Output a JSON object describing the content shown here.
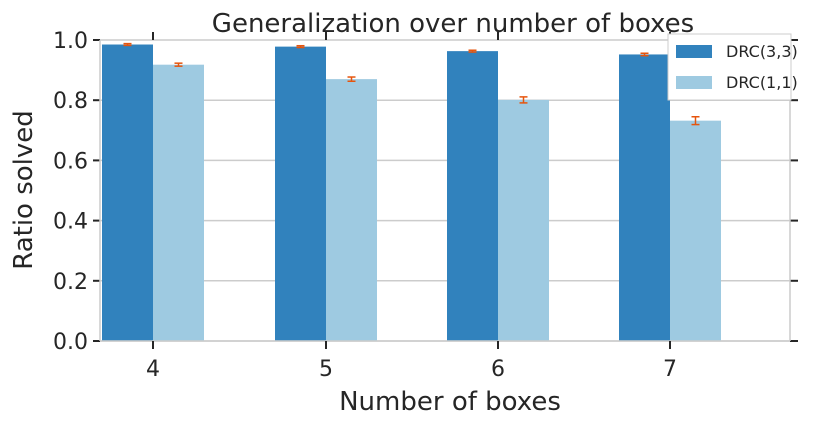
{
  "chart_data": {
    "type": "bar",
    "title": "Generalization over number of boxes",
    "xlabel": "Number of boxes",
    "ylabel": "Ratio solved",
    "categories": [
      "4",
      "5",
      "6",
      "7"
    ],
    "ylim": [
      0.0,
      1.0
    ],
    "yticks": [
      "0.0",
      "0.2",
      "0.4",
      "0.6",
      "0.8",
      "1.0"
    ],
    "grid": "horizontal",
    "legend_position": "top-right",
    "series": [
      {
        "name": "DRC(3,3)",
        "color": "#3182bd",
        "values": [
          0.985,
          0.978,
          0.963,
          0.952
        ],
        "errors": [
          0.003,
          0.003,
          0.003,
          0.004
        ]
      },
      {
        "name": "DRC(1,1)",
        "color": "#9ecae1",
        "values": [
          0.918,
          0.87,
          0.801,
          0.732
        ],
        "errors": [
          0.005,
          0.007,
          0.01,
          0.013
        ]
      }
    ],
    "error_bar_color": "#e6550d"
  }
}
